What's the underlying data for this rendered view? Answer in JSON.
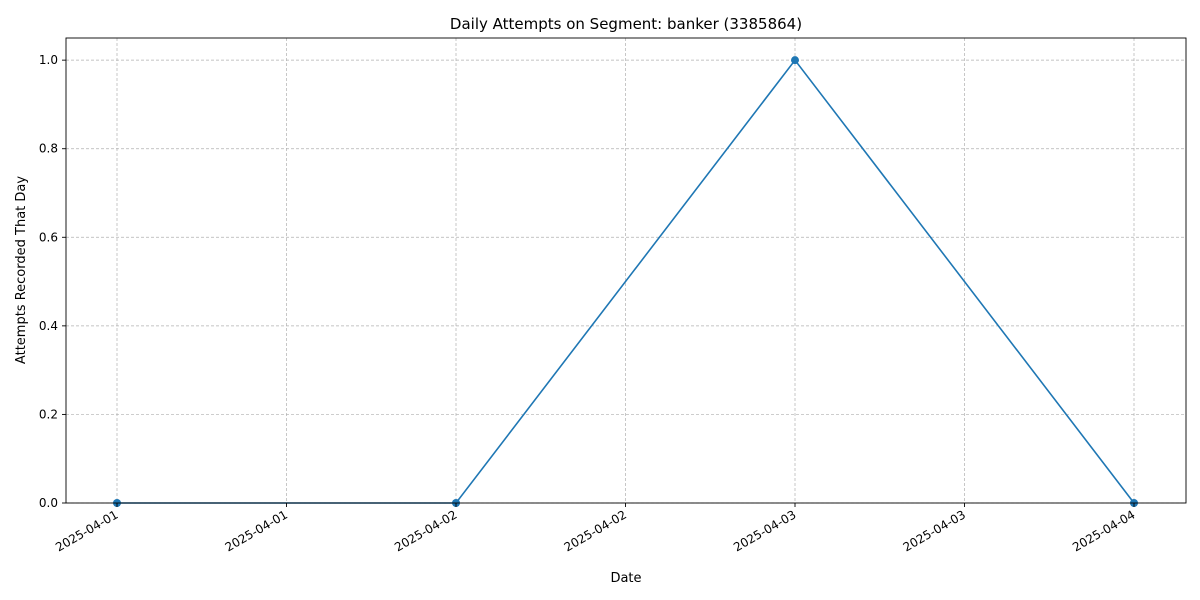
{
  "chart_data": {
    "type": "line",
    "title": "Daily Attempts on Segment: banker (3385864)",
    "xlabel": "Date",
    "ylabel": "Attempts Recorded That Day",
    "x": [
      "2025-04-01",
      "2025-04-02",
      "2025-04-03",
      "2025-04-04"
    ],
    "series": [
      {
        "values": [
          0,
          0,
          1,
          0
        ],
        "color": "#1f77b4",
        "marker": "circle"
      }
    ],
    "ylim": [
      0,
      1.05
    ],
    "y_ticks": [
      0.0,
      0.2,
      0.4,
      0.6,
      0.8,
      1.0
    ],
    "y_tick_labels": [
      "0.0",
      "0.2",
      "0.4",
      "0.6",
      "0.8",
      "1.0"
    ],
    "x_tick_labels": [
      "2025-04-01",
      "2025-04-01",
      "2025-04-02",
      "2025-04-02",
      "2025-04-03",
      "2025-04-03",
      "2025-04-04"
    ],
    "grid": true,
    "grid_style": "dashed",
    "legend": false
  }
}
